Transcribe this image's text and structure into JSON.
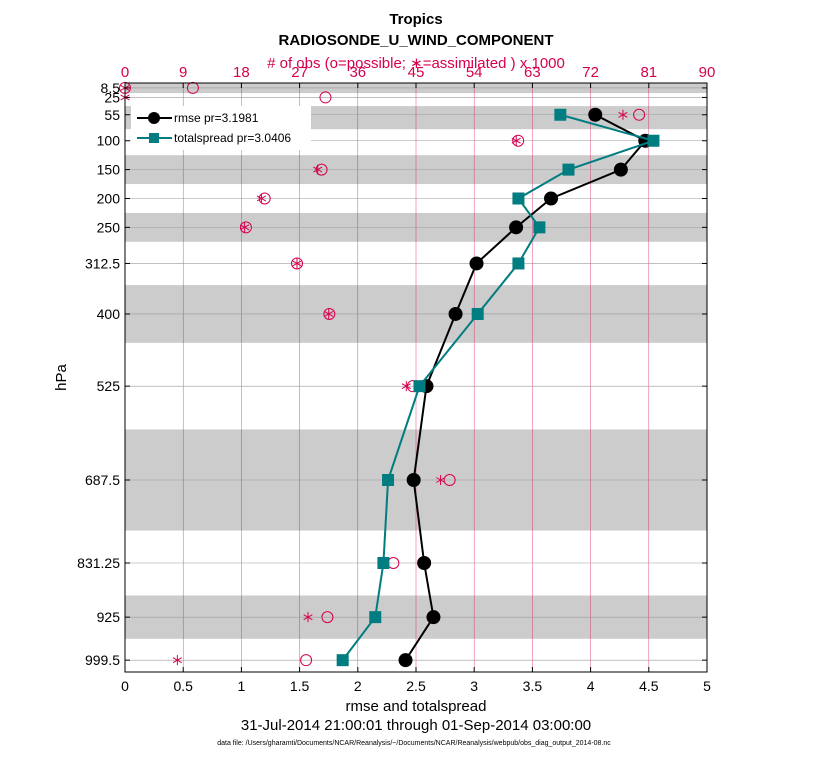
{
  "colors": {
    "obs": "#d6004f",
    "rmse": "#000000",
    "spread": "#007d80",
    "band": "#cccccc"
  },
  "chart_data": {
    "type": "line",
    "title": "Tropics",
    "subtitle": "RADIOSONDE_U_WIND_COMPONENT",
    "top_axis_label": "# of obs (o=possible; ∗=assimilated ) x 1000",
    "xlabel": "rmse and totalspread",
    "ylabel": "hPa",
    "date_range": "31-Jul-2014 21:00:01 through 01-Sep-2014 03:00:00",
    "footer": "data file: /Users/gharamti/Documents/NCAR/Reanalysis/~/Documents/NCAR/Reanalysis/webpub/obs_diag_output_2014-08.nc",
    "xlim": [
      0,
      5
    ],
    "x_ticks": [
      "0",
      "0.5",
      "1",
      "1.5",
      "2",
      "2.5",
      "3",
      "3.5",
      "4",
      "4.5",
      "5"
    ],
    "top_xlim": [
      0,
      90
    ],
    "top_ticks": [
      "0",
      "9",
      "18",
      "27",
      "36",
      "45",
      "54",
      "63",
      "72",
      "81",
      "90"
    ],
    "levels": [
      8.5,
      25,
      55,
      100,
      150,
      200,
      250,
      312.5,
      400,
      525,
      687.5,
      831.25,
      925,
      999.5
    ],
    "level_labels": [
      "8.5",
      "25",
      "55",
      "100",
      "150",
      "200",
      "250",
      "312.5",
      "400",
      "525",
      "687.5",
      "831.25",
      "925",
      "999.5"
    ],
    "ylim_hpa": [
      1020,
      0
    ],
    "layer_bands_hpa": [
      [
        0,
        17.5
      ],
      [
        40,
        80
      ],
      [
        125,
        175
      ],
      [
        225,
        275
      ],
      [
        350,
        450
      ],
      [
        600,
        775
      ],
      [
        887.5,
        962.5
      ]
    ],
    "series": [
      {
        "name": "rmse",
        "legend": "rmse pr=3.1981",
        "marker": "circle",
        "points": [
          {
            "p": 55,
            "v": 4.04
          },
          {
            "p": 100,
            "v": 4.47
          },
          {
            "p": 150,
            "v": 4.26
          },
          {
            "p": 200,
            "v": 3.66
          },
          {
            "p": 250,
            "v": 3.36
          },
          {
            "p": 312.5,
            "v": 3.02
          },
          {
            "p": 400,
            "v": 2.84
          },
          {
            "p": 525,
            "v": 2.59
          },
          {
            "p": 687.5,
            "v": 2.48
          },
          {
            "p": 831.25,
            "v": 2.57
          },
          {
            "p": 925,
            "v": 2.65
          },
          {
            "p": 999.5,
            "v": 2.41
          }
        ]
      },
      {
        "name": "totalspread",
        "legend": "totalspread pr=3.0406",
        "marker": "square",
        "points": [
          {
            "p": 55,
            "v": 3.74
          },
          {
            "p": 100,
            "v": 4.54
          },
          {
            "p": 150,
            "v": 3.81
          },
          {
            "p": 200,
            "v": 3.38
          },
          {
            "p": 250,
            "v": 3.56
          },
          {
            "p": 312.5,
            "v": 3.38
          },
          {
            "p": 400,
            "v": 3.03
          },
          {
            "p": 525,
            "v": 2.53
          },
          {
            "p": 687.5,
            "v": 2.26
          },
          {
            "p": 831.25,
            "v": 2.22
          },
          {
            "p": 925,
            "v": 2.15
          },
          {
            "p": 999.5,
            "v": 1.87
          }
        ]
      }
    ],
    "obs_possible": [
      {
        "p": 8.5,
        "n": 0
      },
      {
        "p": 25,
        "n": 31
      },
      {
        "p": 55,
        "n": 79.5
      },
      {
        "p": 100,
        "n": 60.8
      },
      {
        "p": 150,
        "n": 30.4
      },
      {
        "p": 200,
        "n": 21.6
      },
      {
        "p": 250,
        "n": 18.7
      },
      {
        "p": 312.5,
        "n": 26.6
      },
      {
        "p": 400,
        "n": 31.6
      },
      {
        "p": 525,
        "n": 44.5
      },
      {
        "p": 687.5,
        "n": 50.2
      },
      {
        "p": 831.25,
        "n": 41.5
      },
      {
        "p": 925,
        "n": 31.3
      },
      {
        "p": 999.5,
        "n": 28.0
      }
    ],
    "obs_possible_extra": [
      {
        "p": 8.5,
        "n": 10.5
      }
    ],
    "obs_assimilated": [
      {
        "p": 8.5,
        "n": 0
      },
      {
        "p": 25,
        "n": 0
      },
      {
        "p": 55,
        "n": 77.0
      },
      {
        "p": 100,
        "n": 60.5
      },
      {
        "p": 150,
        "n": 29.8
      },
      {
        "p": 200,
        "n": 21.1
      },
      {
        "p": 250,
        "n": 18.5
      },
      {
        "p": 312.5,
        "n": 26.6
      },
      {
        "p": 400,
        "n": 31.5
      },
      {
        "p": 525,
        "n": 43.5
      },
      {
        "p": 687.5,
        "n": 48.8
      },
      {
        "p": 831.25,
        "n": 40.0
      },
      {
        "p": 925,
        "n": 28.3
      },
      {
        "p": 999.5,
        "n": 8.1
      }
    ]
  }
}
